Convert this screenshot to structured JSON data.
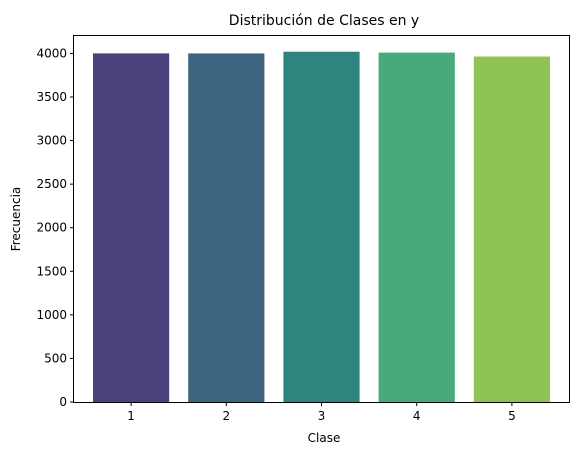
{
  "chart_data": {
    "type": "bar",
    "title": "Distribución de Clases en y",
    "xlabel": "Clase",
    "ylabel": "Frecuencia",
    "categories": [
      "1",
      "2",
      "3",
      "4",
      "5"
    ],
    "values": [
      4000,
      4000,
      4020,
      4010,
      3965
    ],
    "colors": [
      "#48417a",
      "#3d6580",
      "#2e8580",
      "#48a97a",
      "#8fc455"
    ],
    "ylim": [
      0,
      4200
    ],
    "yticks": [
      0,
      500,
      1000,
      1500,
      2000,
      2500,
      3000,
      3500,
      4000
    ],
    "grid": false,
    "legend": false
  }
}
